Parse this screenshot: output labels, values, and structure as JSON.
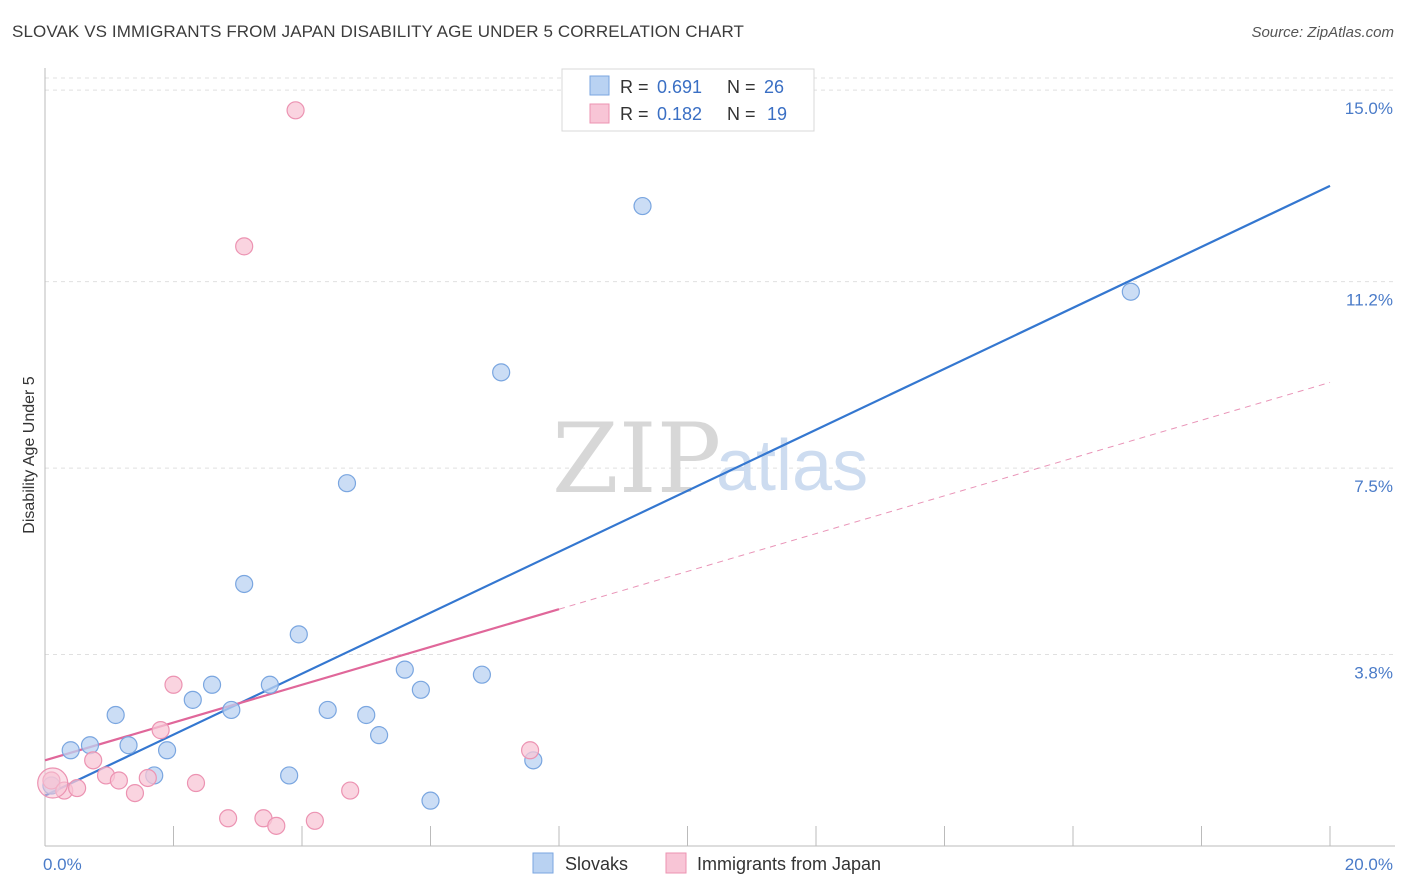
{
  "header": {
    "title": "SLOVAK VS IMMIGRANTS FROM JAPAN DISABILITY AGE UNDER 5 CORRELATION CHART",
    "source": "Source: ZipAtlas.com"
  },
  "watermark": {
    "zip": "ZIP",
    "atlas": "atlas"
  },
  "colors": {
    "slovak_fill": "#b9d2f2",
    "slovak_stroke": "#7aa6e0",
    "slovak_line": "#3477d0",
    "japan_fill": "#f8c5d6",
    "japan_stroke": "#ec93b2",
    "japan_line": "#e0679a",
    "grid": "#e0e0e0"
  },
  "chart_data": {
    "type": "scatter",
    "title": "SLOVAK VS IMMIGRANTS FROM JAPAN DISABILITY AGE UNDER 5 CORRELATION CHART",
    "xlabel": "",
    "ylabel": "Disability Age Under 5",
    "xlim": [
      0,
      20
    ],
    "ylim": [
      0,
      15.4
    ],
    "x_tick_labels": [
      {
        "value": 0,
        "label": "0.0%"
      },
      {
        "value": 20,
        "label": "20.0%"
      }
    ],
    "y_tick_labels": [
      {
        "value": 3.8,
        "label": "3.8%"
      },
      {
        "value": 7.5,
        "label": "7.5%"
      },
      {
        "value": 11.2,
        "label": "11.2%"
      },
      {
        "value": 15.0,
        "label": "15.0%"
      }
    ],
    "grid": true,
    "legend": {
      "position": "top-center",
      "entries": [
        {
          "series": "Slovaks",
          "r_label": "R =",
          "r": "0.691",
          "n_label": "N =",
          "n": "26"
        },
        {
          "series": "Immigrants from Japan",
          "r_label": "R =",
          "r": "0.182",
          "n_label": "N =",
          "n": "19"
        }
      ]
    },
    "series": [
      {
        "name": "Slovaks",
        "points": [
          [
            0.1,
            1.2
          ],
          [
            0.4,
            1.9
          ],
          [
            0.7,
            2.0
          ],
          [
            1.1,
            2.6
          ],
          [
            1.3,
            2.0
          ],
          [
            1.7,
            1.4
          ],
          [
            1.9,
            1.9
          ],
          [
            2.3,
            2.9
          ],
          [
            2.6,
            3.2
          ],
          [
            2.9,
            2.7
          ],
          [
            3.1,
            5.2
          ],
          [
            3.5,
            3.2
          ],
          [
            3.8,
            1.4
          ],
          [
            3.95,
            4.2
          ],
          [
            4.4,
            2.7
          ],
          [
            4.7,
            7.2
          ],
          [
            5.0,
            2.6
          ],
          [
            5.2,
            2.2
          ],
          [
            5.6,
            3.5
          ],
          [
            5.85,
            3.1
          ],
          [
            6.0,
            0.9
          ],
          [
            6.8,
            3.4
          ],
          [
            7.1,
            9.4
          ],
          [
            7.6,
            1.7
          ],
          [
            9.3,
            12.7
          ],
          [
            16.9,
            11.0
          ]
        ],
        "trend": {
          "x0": 0,
          "y0": 1.0,
          "x1": 20,
          "y1": 13.1,
          "dashed_from": null
        }
      },
      {
        "name": "Immigrants from Japan",
        "points": [
          [
            0.1,
            1.3
          ],
          [
            0.3,
            1.1
          ],
          [
            0.5,
            1.15
          ],
          [
            0.75,
            1.7
          ],
          [
            0.95,
            1.4
          ],
          [
            1.15,
            1.3
          ],
          [
            1.4,
            1.05
          ],
          [
            1.6,
            1.35
          ],
          [
            1.8,
            2.3
          ],
          [
            2.0,
            3.2
          ],
          [
            2.35,
            1.25
          ],
          [
            2.85,
            0.55
          ],
          [
            3.1,
            11.9
          ],
          [
            3.4,
            0.55
          ],
          [
            3.6,
            0.4
          ],
          [
            3.9,
            14.6
          ],
          [
            4.2,
            0.5
          ],
          [
            4.75,
            1.1
          ],
          [
            7.55,
            1.9
          ]
        ],
        "trend": {
          "x0": 0,
          "y0": 1.7,
          "x1": 20,
          "y1": 9.2,
          "solid_to": 8.0
        }
      }
    ]
  },
  "bottom_legend": {
    "items": [
      {
        "label": "Slovaks"
      },
      {
        "label": "Immigrants from Japan"
      }
    ]
  }
}
